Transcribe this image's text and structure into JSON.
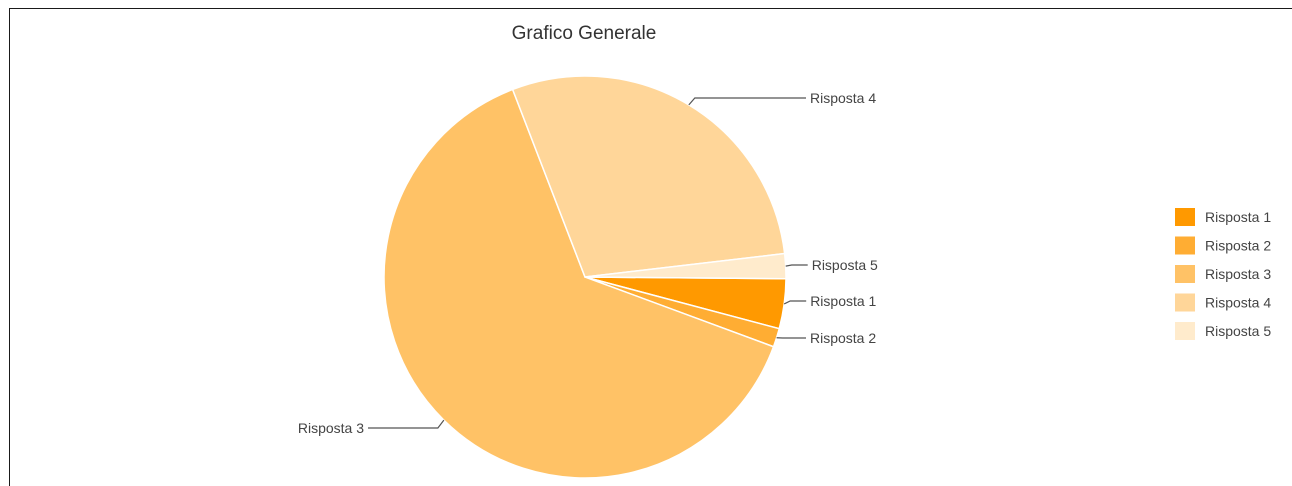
{
  "chart_data": {
    "type": "pie",
    "title": "Grafico Generale",
    "legend_position": "right",
    "slices": [
      {
        "label": "Risposta 1",
        "value": 4.0,
        "color": "#ff9900"
      },
      {
        "label": "Risposta 2",
        "value": 1.5,
        "color": "#ffad33"
      },
      {
        "label": "Risposta 3",
        "value": 63.5,
        "color": "#ffc266"
      },
      {
        "label": "Risposta 4",
        "value": 29.0,
        "color": "#ffd699"
      },
      {
        "label": "Risposta 5",
        "value": 2.0,
        "color": "#ffebcc"
      }
    ]
  }
}
